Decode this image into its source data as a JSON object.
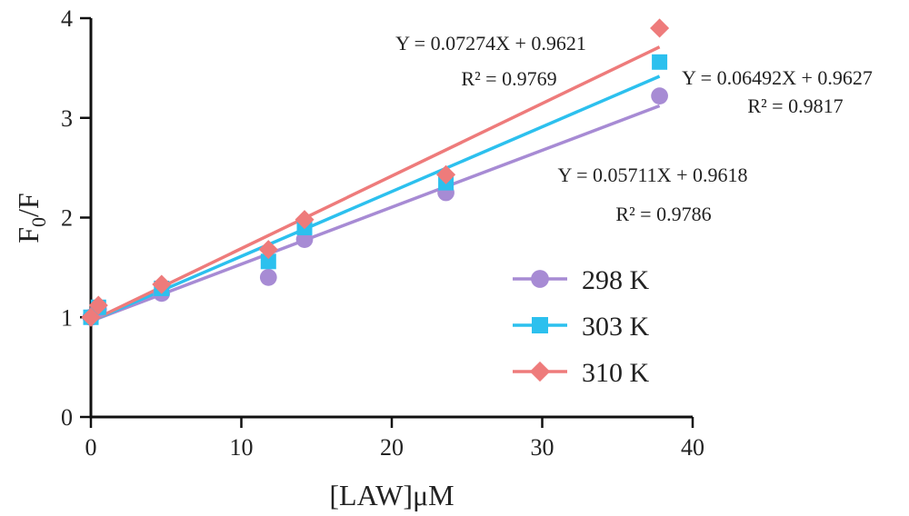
{
  "chart_data": {
    "type": "scatter",
    "title": "",
    "xlabel": "[LAW]μM",
    "ylabel_main": "F",
    "ylabel_sub": "0",
    "ylabel_tail": "/F",
    "xlim": [
      0,
      40
    ],
    "ylim": [
      0,
      4
    ],
    "xticks": [
      0,
      10,
      20,
      30,
      40
    ],
    "yticks": [
      0,
      1,
      2,
      3,
      4
    ],
    "grid": false,
    "legend_position": "bottom-right",
    "series": [
      {
        "name": "298 K",
        "marker": "circle",
        "color": "#a78bd4",
        "x": [
          0,
          0.5,
          4.7,
          11.8,
          14.2,
          23.6,
          37.8
        ],
        "y": [
          1.0,
          1.08,
          1.24,
          1.4,
          1.78,
          2.25,
          3.22
        ],
        "fit": {
          "slope": 0.05711,
          "intercept": 0.9618
        },
        "equation": "Y = 0.05711X + 0.9618",
        "r2": "R² = 0.9786"
      },
      {
        "name": "303 K",
        "marker": "square",
        "color": "#2cc0ee",
        "x": [
          0,
          0.5,
          4.7,
          11.8,
          14.2,
          23.6,
          37.8
        ],
        "y": [
          1.0,
          1.1,
          1.29,
          1.56,
          1.9,
          2.35,
          3.56
        ],
        "fit": {
          "slope": 0.06492,
          "intercept": 0.9627
        },
        "equation": "Y = 0.06492X + 0.9627",
        "r2": "R² = 0.9817"
      },
      {
        "name": "310 K",
        "marker": "diamond",
        "color": "#ee7b7b",
        "x": [
          0,
          0.5,
          4.7,
          11.8,
          14.2,
          23.6,
          37.8
        ],
        "y": [
          1.0,
          1.12,
          1.33,
          1.68,
          1.98,
          2.43,
          3.9
        ],
        "fit": {
          "slope": 0.07274,
          "intercept": 0.9621
        },
        "equation": "Y = 0.07274X + 0.9621",
        "r2": "R² = 0.9769"
      }
    ]
  }
}
